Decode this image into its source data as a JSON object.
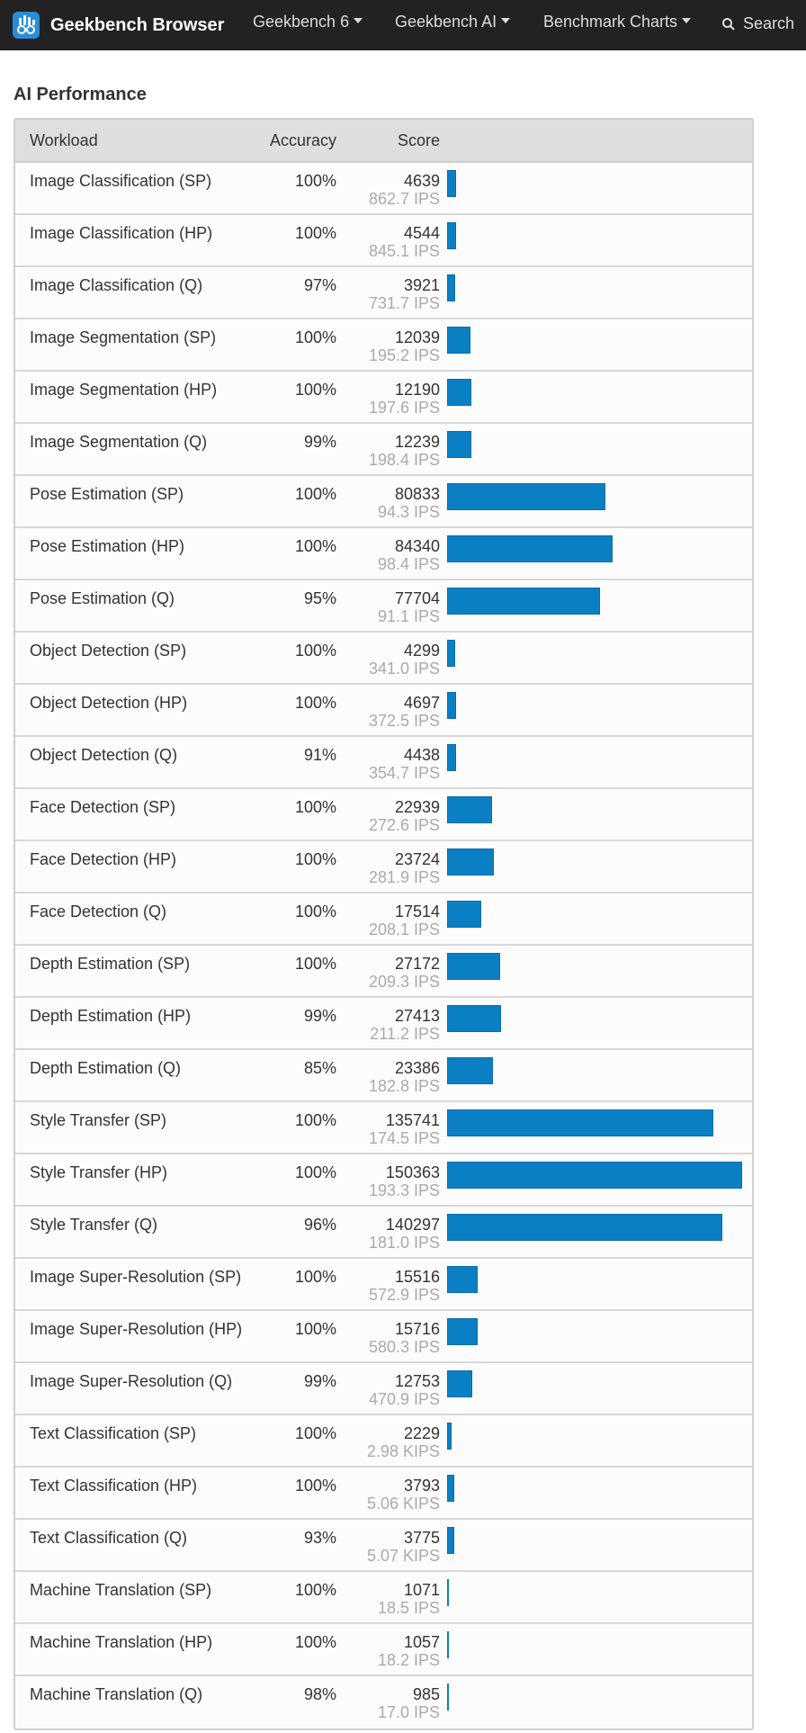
{
  "navbar": {
    "brand": "Geekbench Browser",
    "menu": [
      "Geekbench 6",
      "Geekbench AI",
      "Benchmark Charts"
    ],
    "search_label": "Search"
  },
  "section_title": "AI Performance",
  "table": {
    "headers": {
      "workload": "Workload",
      "accuracy": "Accuracy",
      "score": "Score"
    },
    "max_score": 150363,
    "bar_color": "#0b7fc3",
    "rows": [
      {
        "workload": "Image Classification (SP)",
        "accuracy": "100%",
        "score": "4639",
        "ips": "862.7 IPS"
      },
      {
        "workload": "Image Classification (HP)",
        "accuracy": "100%",
        "score": "4544",
        "ips": "845.1 IPS"
      },
      {
        "workload": "Image Classification (Q)",
        "accuracy": "97%",
        "score": "3921",
        "ips": "731.7 IPS"
      },
      {
        "workload": "Image Segmentation (SP)",
        "accuracy": "100%",
        "score": "12039",
        "ips": "195.2 IPS"
      },
      {
        "workload": "Image Segmentation (HP)",
        "accuracy": "100%",
        "score": "12190",
        "ips": "197.6 IPS"
      },
      {
        "workload": "Image Segmentation (Q)",
        "accuracy": "99%",
        "score": "12239",
        "ips": "198.4 IPS"
      },
      {
        "workload": "Pose Estimation (SP)",
        "accuracy": "100%",
        "score": "80833",
        "ips": "94.3 IPS"
      },
      {
        "workload": "Pose Estimation (HP)",
        "accuracy": "100%",
        "score": "84340",
        "ips": "98.4 IPS"
      },
      {
        "workload": "Pose Estimation (Q)",
        "accuracy": "95%",
        "score": "77704",
        "ips": "91.1 IPS"
      },
      {
        "workload": "Object Detection (SP)",
        "accuracy": "100%",
        "score": "4299",
        "ips": "341.0 IPS"
      },
      {
        "workload": "Object Detection (HP)",
        "accuracy": "100%",
        "score": "4697",
        "ips": "372.5 IPS"
      },
      {
        "workload": "Object Detection (Q)",
        "accuracy": "91%",
        "score": "4438",
        "ips": "354.7 IPS"
      },
      {
        "workload": "Face Detection (SP)",
        "accuracy": "100%",
        "score": "22939",
        "ips": "272.6 IPS"
      },
      {
        "workload": "Face Detection (HP)",
        "accuracy": "100%",
        "score": "23724",
        "ips": "281.9 IPS"
      },
      {
        "workload": "Face Detection (Q)",
        "accuracy": "100%",
        "score": "17514",
        "ips": "208.1 IPS"
      },
      {
        "workload": "Depth Estimation (SP)",
        "accuracy": "100%",
        "score": "27172",
        "ips": "209.3 IPS"
      },
      {
        "workload": "Depth Estimation (HP)",
        "accuracy": "99%",
        "score": "27413",
        "ips": "211.2 IPS"
      },
      {
        "workload": "Depth Estimation (Q)",
        "accuracy": "85%",
        "score": "23386",
        "ips": "182.8 IPS"
      },
      {
        "workload": "Style Transfer (SP)",
        "accuracy": "100%",
        "score": "135741",
        "ips": "174.5 IPS"
      },
      {
        "workload": "Style Transfer (HP)",
        "accuracy": "100%",
        "score": "150363",
        "ips": "193.3 IPS"
      },
      {
        "workload": "Style Transfer (Q)",
        "accuracy": "96%",
        "score": "140297",
        "ips": "181.0 IPS"
      },
      {
        "workload": "Image Super-Resolution (SP)",
        "accuracy": "100%",
        "score": "15516",
        "ips": "572.9 IPS"
      },
      {
        "workload": "Image Super-Resolution (HP)",
        "accuracy": "100%",
        "score": "15716",
        "ips": "580.3 IPS"
      },
      {
        "workload": "Image Super-Resolution (Q)",
        "accuracy": "99%",
        "score": "12753",
        "ips": "470.9 IPS"
      },
      {
        "workload": "Text Classification (SP)",
        "accuracy": "100%",
        "score": "2229",
        "ips": "2.98 KIPS"
      },
      {
        "workload": "Text Classification (HP)",
        "accuracy": "100%",
        "score": "3793",
        "ips": "5.06 KIPS"
      },
      {
        "workload": "Text Classification (Q)",
        "accuracy": "93%",
        "score": "3775",
        "ips": "5.07 KIPS"
      },
      {
        "workload": "Machine Translation (SP)",
        "accuracy": "100%",
        "score": "1071",
        "ips": "18.5 IPS"
      },
      {
        "workload": "Machine Translation (HP)",
        "accuracy": "100%",
        "score": "1057",
        "ips": "18.2 IPS"
      },
      {
        "workload": "Machine Translation (Q)",
        "accuracy": "98%",
        "score": "985",
        "ips": "17.0 IPS"
      }
    ]
  }
}
